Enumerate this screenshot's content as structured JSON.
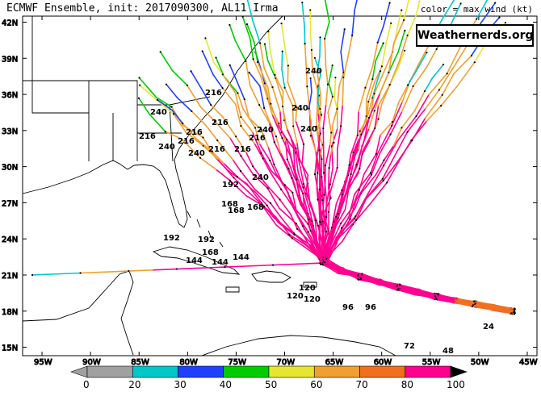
{
  "header": {
    "title": "ECMWF Ensemble, init: 2017090300, AL11 Irma",
    "legend_note": "color = max wind (kt)",
    "brand": "Weathernerds.org"
  },
  "map": {
    "lon_range": [
      -97,
      -44
    ],
    "lat_range": [
      14.3,
      42.5
    ],
    "lat_ticks": [
      "15N",
      "18N",
      "21N",
      "24N",
      "27N",
      "30N",
      "33N",
      "36N",
      "39N",
      "42N"
    ],
    "lon_ticks": [
      "95W",
      "90W",
      "85W",
      "80W",
      "75W",
      "70W",
      "65W",
      "60W",
      "55W",
      "50W",
      "45W"
    ],
    "hour_labels": [
      "240",
      "240",
      "240",
      "240",
      "240",
      "216",
      "216",
      "216",
      "216",
      "216",
      "216",
      "216",
      "240",
      "240",
      "240",
      "216",
      "192",
      "192",
      "192",
      "168",
      "168",
      "168",
      "168",
      "144",
      "144",
      "144",
      "120",
      "120",
      "120",
      "96",
      "96",
      "72",
      "48",
      "24"
    ],
    "colorbar": {
      "ticks": [
        "0",
        "20",
        "30",
        "40",
        "50",
        "60",
        "70",
        "80",
        "100"
      ],
      "colors": [
        "#a0a0a0",
        "#00c8c8",
        "#2040ff",
        "#00cc00",
        "#e6e632",
        "#f0a030",
        "#f07020",
        "#ff0090",
        "#000000"
      ]
    }
  }
}
